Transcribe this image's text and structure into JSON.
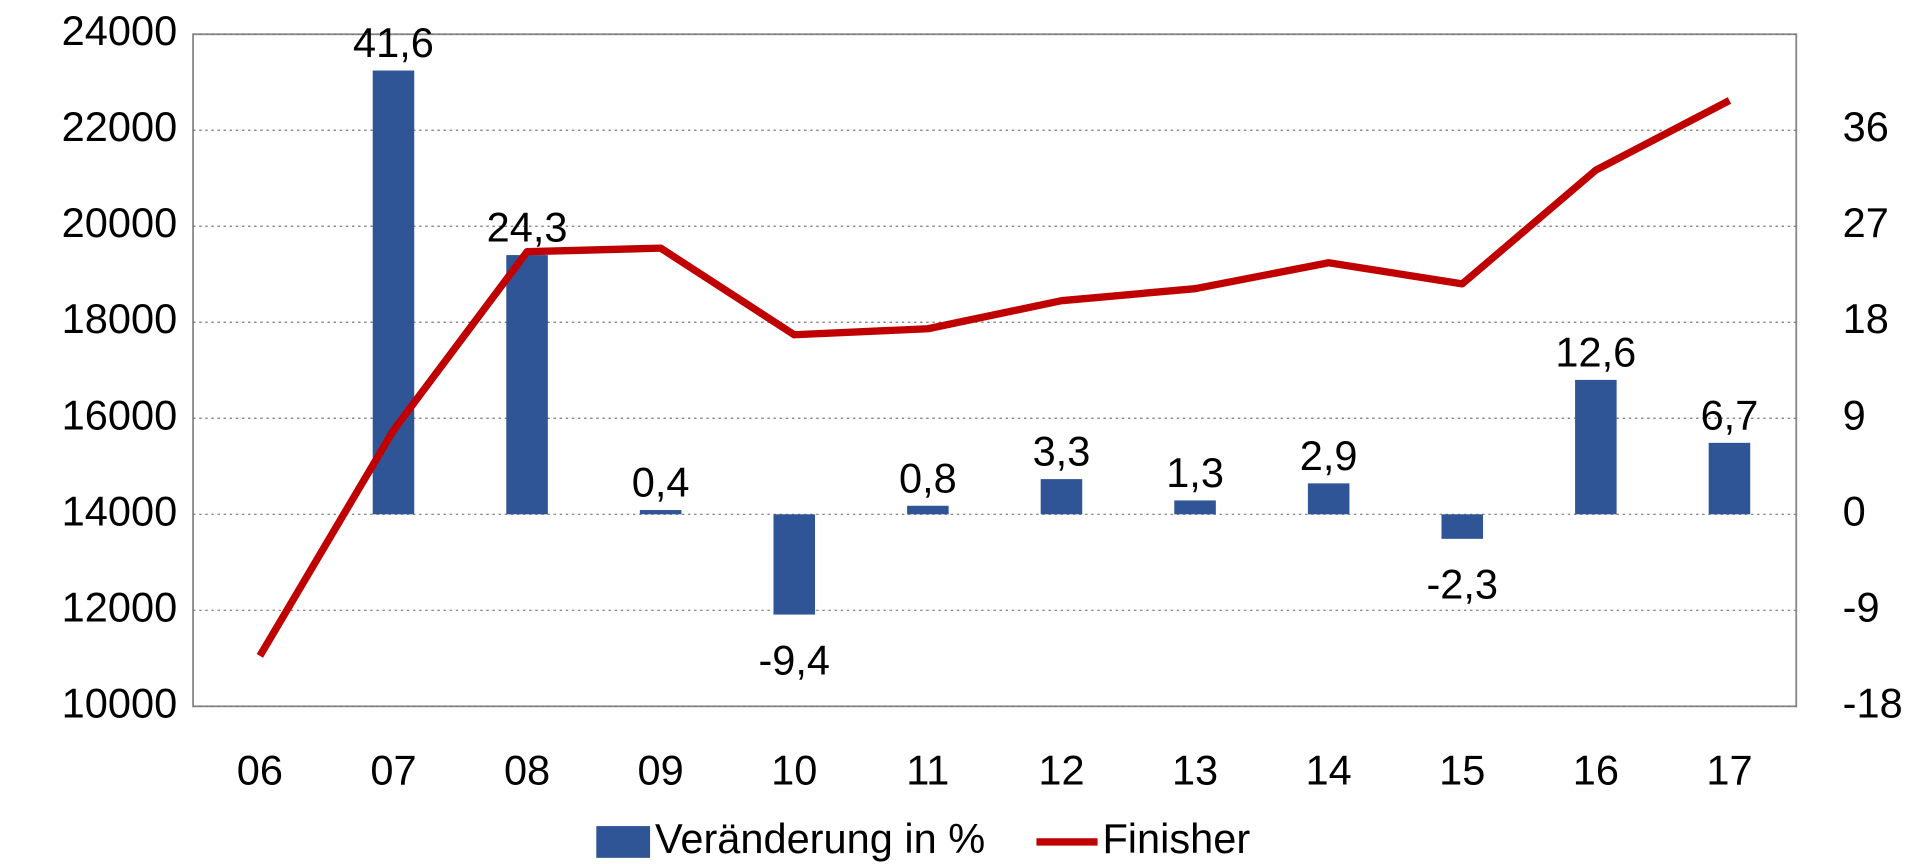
{
  "chart_data": {
    "type": "bar_line",
    "categories": [
      "06",
      "07",
      "08",
      "09",
      "10",
      "11",
      "12",
      "13",
      "14",
      "15",
      "16",
      "17"
    ],
    "series": [
      {
        "name": "Veränderung in %",
        "type": "bar",
        "axis": "y2",
        "color": "#2f5597",
        "values": [
          null,
          41.6,
          24.3,
          0.4,
          -9.4,
          0.8,
          3.3,
          1.3,
          2.9,
          -2.3,
          12.6,
          6.7
        ],
        "value_labels": [
          null,
          "41,6",
          "24,3",
          "0,4",
          "-9,4",
          "0,8",
          "3,3",
          "1,3",
          "2,9",
          "-2,3",
          "12,6",
          "6,7"
        ]
      },
      {
        "name": "Finisher",
        "type": "line",
        "color": "#c00000",
        "values": [
          11050,
          15750,
          19470,
          19545,
          17740,
          17865,
          18450,
          18700,
          19240,
          18800,
          21170,
          22620
        ]
      }
    ],
    "ylim": [
      10000,
      24000
    ],
    "yticks": [
      10000,
      12000,
      14000,
      16000,
      18000,
      20000,
      22000,
      24000
    ],
    "y2lim": [
      -18,
      45
    ],
    "y2ticks": [
      -18,
      -9,
      0,
      9,
      18,
      27,
      36
    ],
    "grid": true,
    "legend": "bottom"
  }
}
